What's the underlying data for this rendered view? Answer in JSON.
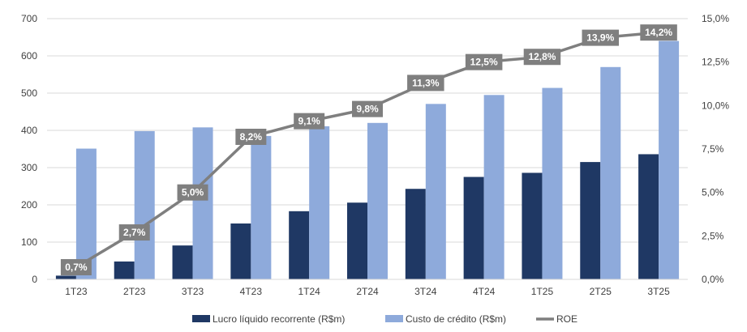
{
  "chart_data": {
    "type": "bar",
    "title": "",
    "categories": [
      "1T23",
      "2T23",
      "3T23",
      "4T23",
      "1T24",
      "2T24",
      "3T24",
      "4T24",
      "1T25",
      "2T25",
      "3T25"
    ],
    "series": [
      {
        "name": "Lucro líquido recorrente (R$m)",
        "type": "bar",
        "axis": "left",
        "color": "#1f3864",
        "values": [
          10,
          48,
          91,
          150,
          183,
          206,
          243,
          275,
          286,
          315,
          336
        ]
      },
      {
        "name": "Custo de crédito (R$m)",
        "type": "bar",
        "axis": "left",
        "color": "#8eaadb",
        "values": [
          351,
          398,
          408,
          385,
          411,
          420,
          471,
          495,
          514,
          570,
          640
        ]
      },
      {
        "name": "ROE",
        "type": "line",
        "axis": "right",
        "color": "#7f7f7f",
        "values": [
          0.7,
          2.7,
          5.0,
          8.2,
          9.1,
          9.8,
          11.3,
          12.5,
          12.8,
          13.9,
          14.2
        ],
        "labels": [
          "0,7%",
          "2,7%",
          "5,0%",
          "8,2%",
          "9,1%",
          "9,8%",
          "11,3%",
          "12,5%",
          "12,8%",
          "13,9%",
          "14,2%"
        ]
      }
    ],
    "ylim": [
      0,
      700
    ],
    "yticks": [
      "0",
      "100",
      "200",
      "300",
      "400",
      "500",
      "600",
      "700"
    ],
    "y2lim": [
      0,
      15
    ],
    "y2ticks": [
      "0,0%",
      "2,5%",
      "5,0%",
      "7,5%",
      "10,0%",
      "12,5%",
      "15,0%"
    ],
    "grid": true,
    "legend": "bottom"
  }
}
